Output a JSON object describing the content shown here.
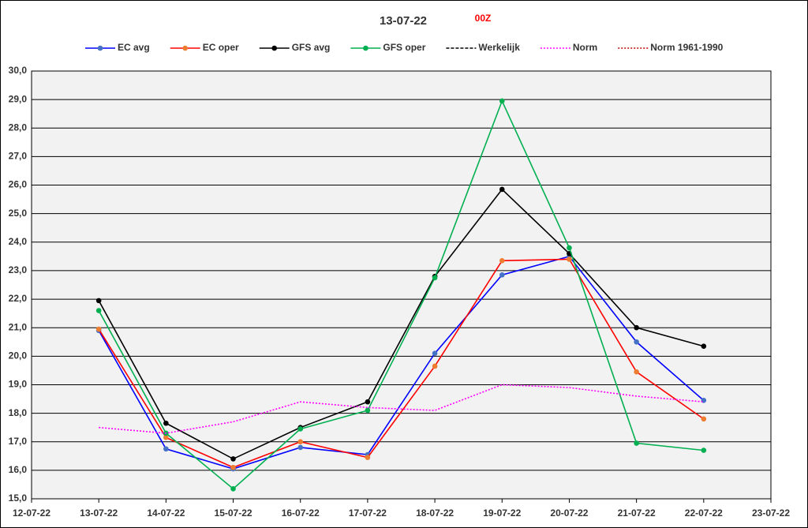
{
  "chart_data": {
    "type": "line",
    "title": "13-07-22",
    "subtitle": "00Z",
    "categories": [
      "12-07-22",
      "13-07-22",
      "14-07-22",
      "15-07-22",
      "16-07-22",
      "17-07-22",
      "18-07-22",
      "19-07-22",
      "20-07-22",
      "21-07-22",
      "22-07-22",
      "23-07-22"
    ],
    "series": [
      {
        "name": "EC avg",
        "color": "#0000ff",
        "marker_color": "#4472c4",
        "marker": true,
        "dash": "solid",
        "values": [
          null,
          20.9,
          16.75,
          16.05,
          16.8,
          16.55,
          20.1,
          22.85,
          23.5,
          20.5,
          18.45,
          null
        ]
      },
      {
        "name": "EC oper",
        "color": "#ff0000",
        "marker_color": "#ed7d31",
        "marker": true,
        "dash": "solid",
        "values": [
          null,
          20.95,
          17.15,
          16.1,
          17.0,
          16.45,
          19.65,
          23.35,
          23.4,
          19.45,
          17.8,
          null
        ]
      },
      {
        "name": "GFS avg",
        "color": "#000000",
        "marker_color": "#000000",
        "marker": true,
        "dash": "solid",
        "values": [
          null,
          21.95,
          17.65,
          16.4,
          17.5,
          18.4,
          22.8,
          25.85,
          23.6,
          21.0,
          20.35,
          null
        ]
      },
      {
        "name": "GFS oper",
        "color": "#00b050",
        "marker_color": "#00b050",
        "marker": true,
        "dash": "solid",
        "values": [
          null,
          21.6,
          17.3,
          15.35,
          17.45,
          18.1,
          22.75,
          28.95,
          23.8,
          16.95,
          16.7,
          null
        ]
      },
      {
        "name": "Werkelijk",
        "color": "#000000",
        "marker": false,
        "dash": "dashed",
        "values": [
          null,
          null,
          null,
          null,
          null,
          null,
          null,
          null,
          null,
          null,
          null,
          null
        ]
      },
      {
        "name": "Norm",
        "color": "#ff00ff",
        "marker": false,
        "dash": "dotted",
        "values": [
          null,
          17.5,
          17.3,
          17.7,
          18.4,
          18.2,
          18.1,
          19.0,
          18.9,
          18.6,
          18.4,
          null
        ]
      },
      {
        "name": "Norm 1961-1990",
        "color": "#c00000",
        "marker": false,
        "dash": "dotted",
        "values": [
          null,
          null,
          null,
          null,
          null,
          null,
          null,
          null,
          null,
          null,
          null,
          null
        ]
      }
    ],
    "ylim": [
      15,
      30
    ],
    "yticks": [
      {
        "value": 15,
        "label": "15,0"
      },
      {
        "value": 16,
        "label": "16,0"
      },
      {
        "value": 17,
        "label": "17,0"
      },
      {
        "value": 18,
        "label": "18,0"
      },
      {
        "value": 19,
        "label": "19,0"
      },
      {
        "value": 20,
        "label": "20,0"
      },
      {
        "value": 21,
        "label": "21,0"
      },
      {
        "value": 22,
        "label": "22,0"
      },
      {
        "value": 23,
        "label": "23,0"
      },
      {
        "value": 24,
        "label": "24,0"
      },
      {
        "value": 25,
        "label": "25,0"
      },
      {
        "value": 26,
        "label": "26,0"
      },
      {
        "value": 27,
        "label": "27,0"
      },
      {
        "value": 28,
        "label": "28,0"
      },
      {
        "value": 29,
        "label": "29,0"
      },
      {
        "value": 30,
        "label": "30,0"
      }
    ],
    "grid": true,
    "legend": "top"
  }
}
